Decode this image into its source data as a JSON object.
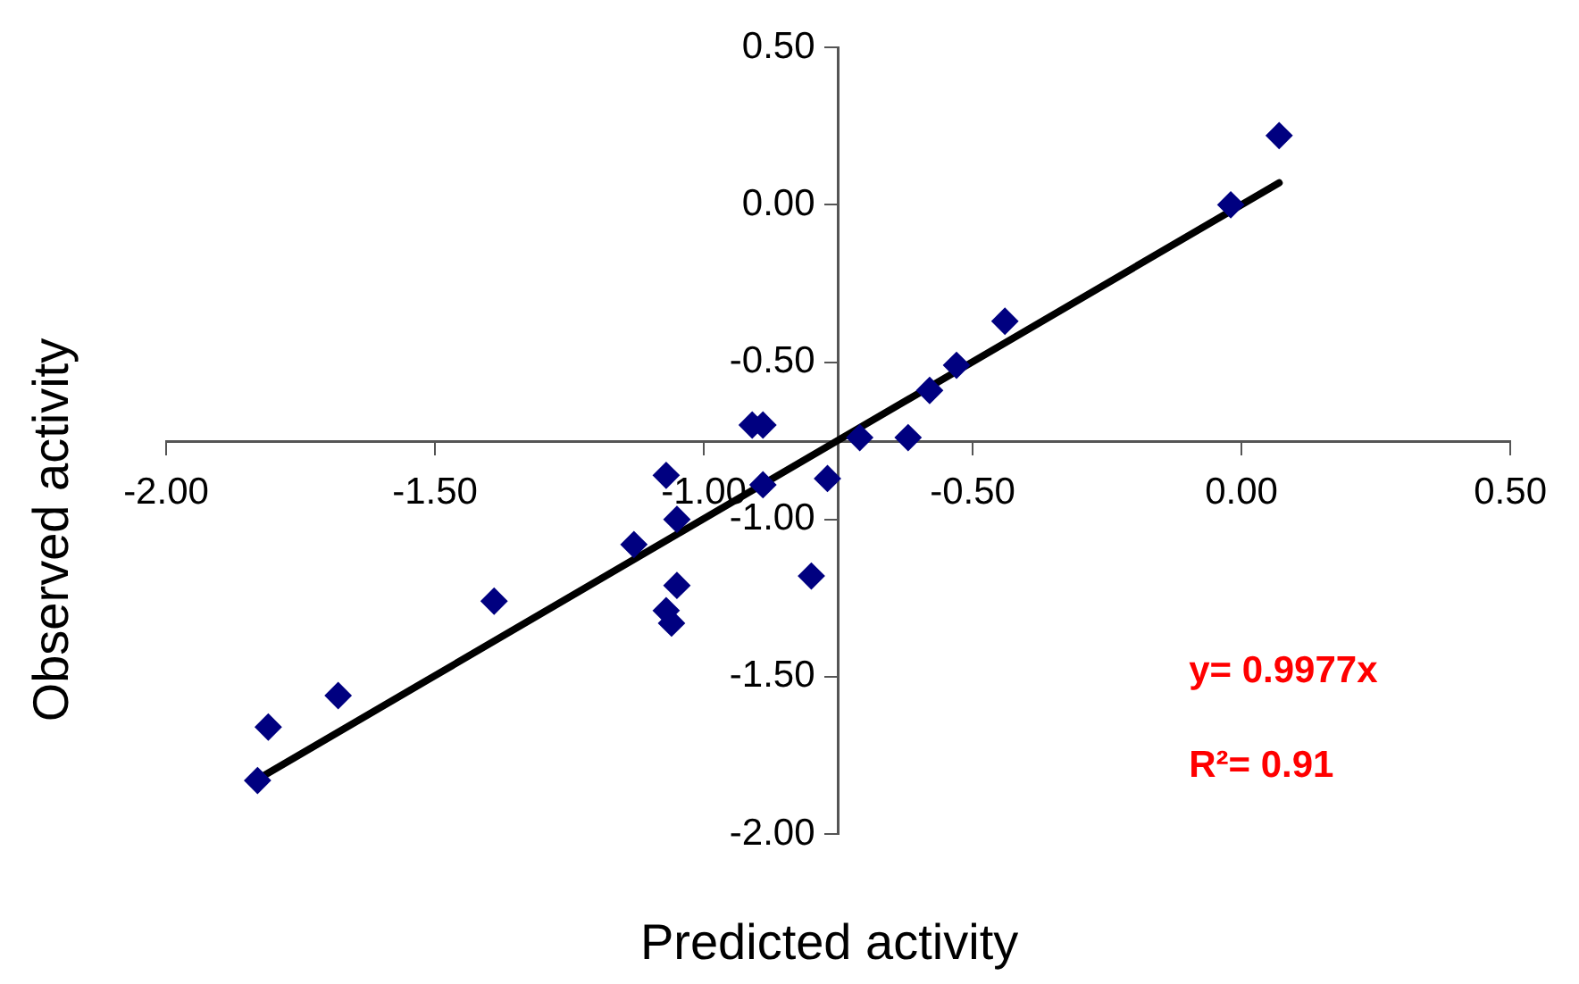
{
  "chart_data": {
    "type": "scatter",
    "xlabel": "Predicted activity",
    "ylabel": "Observed activity",
    "xlim": [
      -2,
      0.5
    ],
    "ylim": [
      -2,
      0.5
    ],
    "xticks": [
      {
        "value": -2,
        "label": "-2.00"
      },
      {
        "value": -1.5,
        "label": "-1.50"
      },
      {
        "value": -1,
        "label": "-1.00"
      },
      {
        "value": -0.5,
        "label": "-0.50"
      },
      {
        "value": 0,
        "label": "0.00"
      },
      {
        "value": 0.5,
        "label": "0.50"
      }
    ],
    "yticks": [
      {
        "value": -2,
        "label": "-2.00"
      },
      {
        "value": -1.5,
        "label": "-1.50"
      },
      {
        "value": -1,
        "label": "-1.00"
      },
      {
        "value": -0.5,
        "label": "-0.50"
      },
      {
        "value": 0,
        "label": "0.00"
      },
      {
        "value": 0.5,
        "label": "0.50"
      }
    ],
    "grid": false,
    "legend": false,
    "marker": "diamond",
    "series": [
      {
        "type": "scatter",
        "color": "#000080",
        "x": [
          -1.83,
          -1.81,
          -1.68,
          -1.39,
          -1.13,
          -1.07,
          -1.05,
          -1.07,
          -1.06,
          -1.05,
          -0.91,
          -0.89,
          -0.89,
          -0.77,
          -0.8,
          -0.71,
          -0.62,
          -0.58,
          -0.53,
          -0.44,
          -0.02,
          0.07
        ],
        "values": [
          -1.83,
          -1.66,
          -1.56,
          -1.26,
          -1.08,
          -0.86,
          -1.0,
          -1.29,
          -1.33,
          -1.21,
          -0.7,
          -0.7,
          -0.89,
          -0.87,
          -1.18,
          -0.74,
          -0.74,
          -0.59,
          -0.51,
          -0.37,
          0.0,
          0.22
        ]
      },
      {
        "type": "line",
        "color": "#000000",
        "marker": "none",
        "x": [
          -1.83,
          0.07
        ],
        "values": [
          -1.826,
          0.07
        ]
      }
    ],
    "annotations": [
      "y= 0.9977x",
      "R²= 0.91"
    ]
  }
}
